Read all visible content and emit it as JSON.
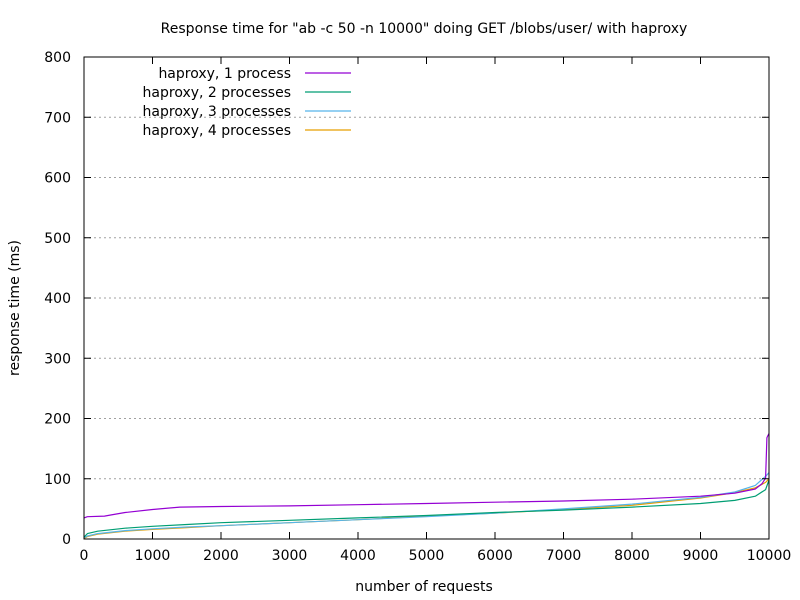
{
  "chart_data": {
    "type": "line",
    "title": "Response time for \"ab -c 50 -n 10000\" doing GET /blobs/user/ with haproxy",
    "xlabel": "number of requests",
    "ylabel": "response time (ms)",
    "xlim": [
      0,
      10000
    ],
    "ylim": [
      0,
      800
    ],
    "xticks": [
      0,
      1000,
      2000,
      3000,
      4000,
      5000,
      6000,
      7000,
      8000,
      9000,
      10000
    ],
    "yticks": [
      0,
      100,
      200,
      300,
      400,
      500,
      600,
      700,
      800
    ],
    "grid": "horizontal, dotted",
    "legend_position": "top-left",
    "series": [
      {
        "name": "haproxy, 1 process",
        "color": "#9400d3",
        "x": [
          0,
          50,
          300,
          400,
          600,
          1000,
          1400,
          2000,
          3000,
          4000,
          5000,
          6000,
          7000,
          8000,
          9000,
          9500,
          9800,
          9900,
          9950,
          9970,
          9985,
          10000
        ],
        "y": [
          35,
          37,
          38,
          40,
          44,
          49,
          53,
          54,
          55,
          57,
          59,
          61,
          63,
          66,
          71,
          76,
          83,
          92,
          101,
          168,
          172,
          175
        ]
      },
      {
        "name": "haproxy, 2 processes",
        "color": "#009e73",
        "x": [
          0,
          50,
          200,
          600,
          1000,
          1500,
          2000,
          3000,
          4000,
          5000,
          6000,
          7000,
          8000,
          9000,
          9500,
          9800,
          9950,
          10000
        ],
        "y": [
          3,
          9,
          13,
          18,
          21,
          24,
          27,
          31,
          35,
          39,
          44,
          48,
          53,
          59,
          64,
          71,
          82,
          98
        ]
      },
      {
        "name": "haproxy, 3 processes",
        "color": "#56b4e9",
        "x": [
          0,
          50,
          200,
          600,
          1000,
          1500,
          2000,
          3000,
          4000,
          5000,
          6000,
          7000,
          8000,
          9000,
          9500,
          9800,
          9950,
          10000
        ],
        "y": [
          2,
          5,
          9,
          14,
          17,
          20,
          22,
          27,
          32,
          37,
          43,
          50,
          58,
          69,
          78,
          89,
          104,
          110
        ]
      },
      {
        "name": "haproxy, 4 processes",
        "color": "#e69f00",
        "x": [
          0,
          50,
          200,
          600,
          1000,
          1500,
          2000,
          3000,
          4000,
          5000,
          6000,
          7000,
          8000,
          9000,
          9500,
          9800,
          9950,
          10000
        ],
        "y": [
          1,
          4,
          8,
          13,
          16,
          19,
          22,
          27,
          32,
          38,
          43,
          49,
          56,
          68,
          77,
          85,
          94,
          100
        ]
      }
    ]
  }
}
